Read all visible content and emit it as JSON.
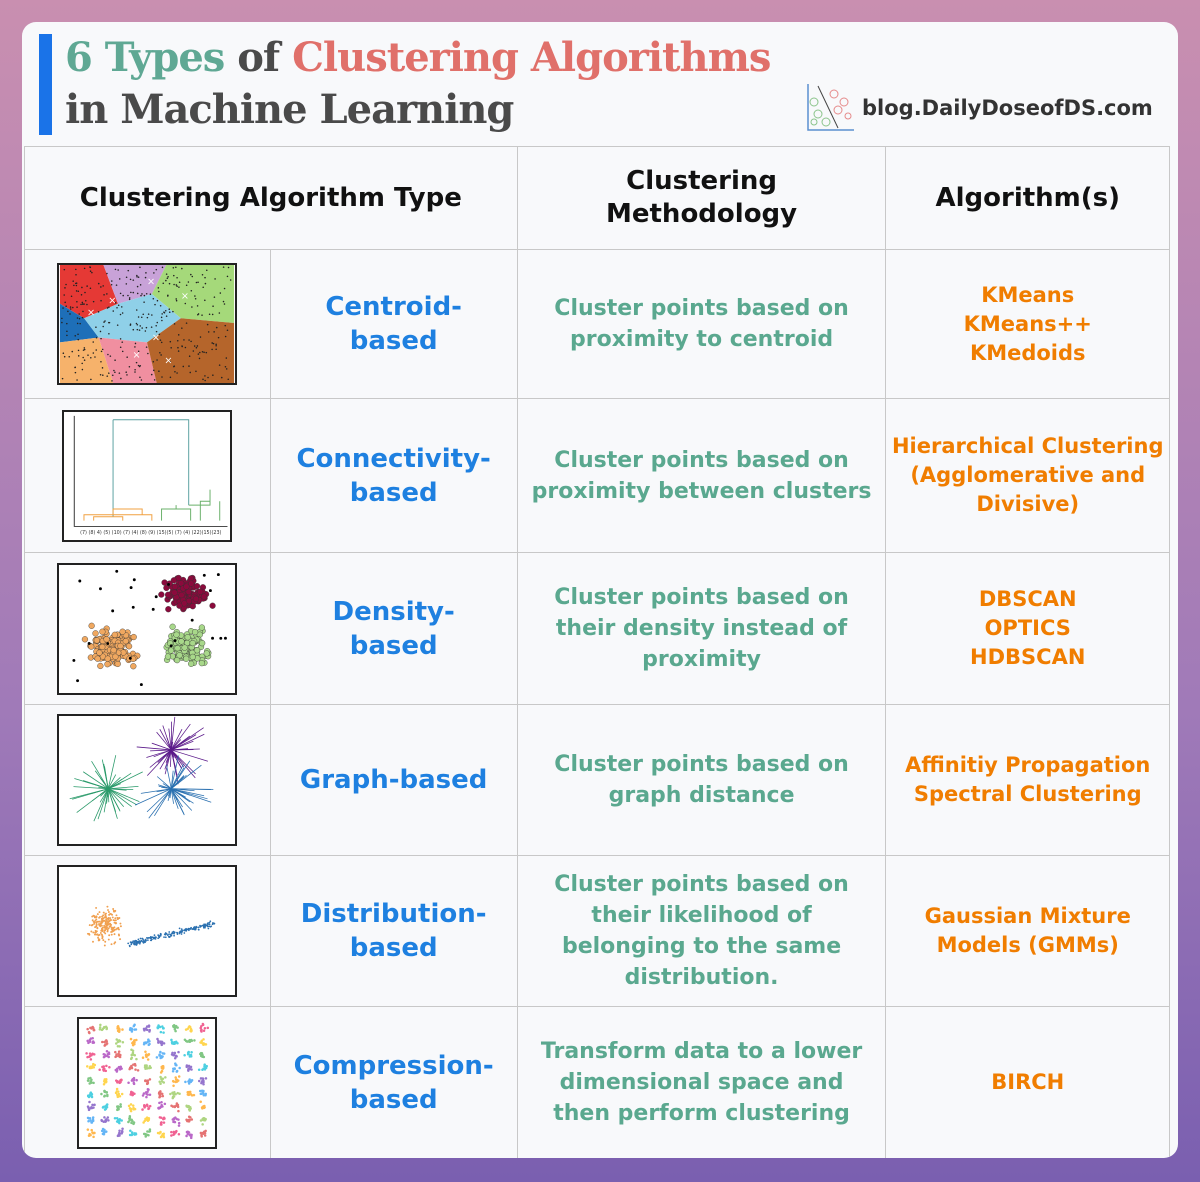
{
  "title": {
    "line1_part1": "6 Types",
    "line1_part2": "of",
    "line1_part3": "Clustering Algorithms",
    "line2": "in Machine Learning"
  },
  "brand": {
    "text": "blog.DailyDoseofDS.com",
    "icon": "scatter-logo-icon"
  },
  "colors": {
    "accent_bar": "#1a73e8",
    "type": "#1e80e0",
    "methodology": "#5aa88f",
    "algorithms": "#f07d00",
    "title_green": "#5fa894",
    "title_red": "#e0706a"
  },
  "headers": [
    "Clustering Algorithm Type",
    "Clustering Methodology",
    "Algorithm(s)"
  ],
  "rows": [
    {
      "type": "Centroid-based",
      "methodology": "Cluster points based on proximity to centroid",
      "algorithms": "KMeans\nKMeans++\nKMedoids",
      "thumbnail": "voronoi-kmeans-plot"
    },
    {
      "type": "Connectivity-based",
      "methodology": "Cluster points based on proximity between clusters",
      "algorithms": "Hierarchical Clustering (Agglomerative and Divisive)",
      "thumbnail": "dendrogram-plot"
    },
    {
      "type": "Density-based",
      "methodology": "Cluster points based on their density instead of proximity",
      "algorithms": "DBSCAN\nOPTICS\nHDBSCAN",
      "thumbnail": "density-scatter-plot"
    },
    {
      "type": "Graph-based",
      "methodology": "Cluster points based on graph distance",
      "algorithms": "Affinitiy Propagation\nSpectral Clustering",
      "thumbnail": "graph-star-plot"
    },
    {
      "type": "Distribution-based",
      "methodology": "Cluster points based on their likelihood of belonging to the same distribution.",
      "algorithms": "Gaussian Mixture Models (GMMs)",
      "thumbnail": "gaussian-scatter-plot"
    },
    {
      "type": "Compression-based",
      "methodology": "Transform data to a lower dimensional space and then perform clustering",
      "algorithms": "BIRCH",
      "thumbnail": "birch-grid-plot"
    }
  ]
}
